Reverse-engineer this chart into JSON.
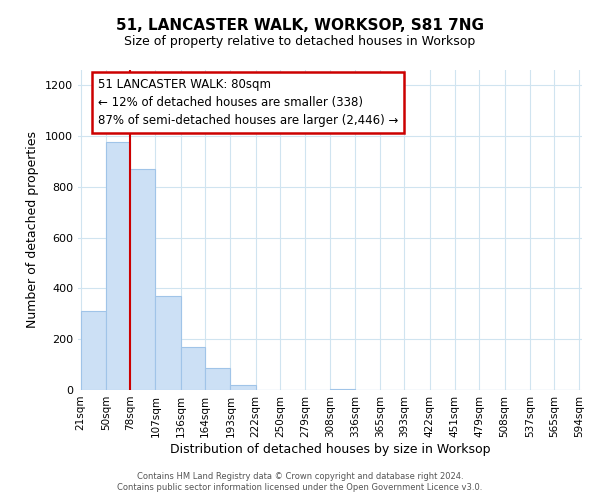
{
  "title": "51, LANCASTER WALK, WORKSOP, S81 7NG",
  "subtitle": "Size of property relative to detached houses in Worksop",
  "xlabel": "Distribution of detached houses by size in Worksop",
  "ylabel": "Number of detached properties",
  "bar_edges": [
    21,
    50,
    78,
    107,
    136,
    164,
    193,
    222,
    250,
    279,
    308,
    336,
    365,
    393,
    422,
    451,
    479,
    508,
    537,
    565,
    594
  ],
  "bar_heights": [
    310,
    975,
    870,
    370,
    170,
    85,
    20,
    0,
    0,
    0,
    5,
    0,
    0,
    0,
    0,
    0,
    0,
    0,
    0,
    0
  ],
  "bar_color": "#cce0f5",
  "bar_edgecolor": "#a0c4e8",
  "property_line_x": 78,
  "property_line_color": "#cc0000",
  "annotation_line1": "51 LANCASTER WALK: 80sqm",
  "annotation_line2": "← 12% of detached houses are smaller (338)",
  "annotation_line3": "87% of semi-detached houses are larger (2,446) →",
  "ylim": [
    0,
    1260
  ],
  "yticks": [
    0,
    200,
    400,
    600,
    800,
    1000,
    1200
  ],
  "tick_labels": [
    "21sqm",
    "50sqm",
    "78sqm",
    "107sqm",
    "136sqm",
    "164sqm",
    "193sqm",
    "222sqm",
    "250sqm",
    "279sqm",
    "308sqm",
    "336sqm",
    "365sqm",
    "393sqm",
    "422sqm",
    "451sqm",
    "479sqm",
    "508sqm",
    "537sqm",
    "565sqm",
    "594sqm"
  ],
  "footer_line1": "Contains HM Land Registry data © Crown copyright and database right 2024.",
  "footer_line2": "Contains public sector information licensed under the Open Government Licence v3.0.",
  "background_color": "#ffffff",
  "grid_color": "#d0e4f0",
  "ann_border_color": "#cc0000",
  "title_fontsize": 11,
  "subtitle_fontsize": 9,
  "ylabel_fontsize": 9,
  "xlabel_fontsize": 9,
  "tick_fontsize": 7.5,
  "ann_fontsize": 8.5,
  "footer_fontsize": 6
}
